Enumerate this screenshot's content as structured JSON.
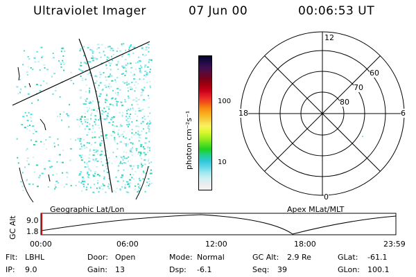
{
  "header": {
    "title": "Ultraviolet Imager",
    "date": "07 Jun 00",
    "time": "00:06:53 UT"
  },
  "colorbar": {
    "unit": "photon cm⁻²s⁻¹",
    "ticks": [
      "100",
      "10"
    ],
    "colors": [
      "#000030",
      "#1a0a40",
      "#3a0f50",
      "#5a0a3a",
      "#7a0018",
      "#a00010",
      "#c80018",
      "#e8202a",
      "#f05018",
      "#f88a10",
      "#f8b020",
      "#f8d040",
      "#f8f060",
      "#e0f830",
      "#a8f020",
      "#60e020",
      "#20d020",
      "#20d090",
      "#30c8d8",
      "#60d8e8",
      "#a0e8f0",
      "#d0f0f4",
      "#ececec",
      "#f6f6f6"
    ]
  },
  "projections": {
    "geographic": "Geographic Lat/Lon",
    "apex": "Apex MLat/MLT"
  },
  "polar": {
    "mlt_labels": {
      "top": "12",
      "right": "6",
      "bottom": "0",
      "left": "18"
    },
    "lat_labels": [
      "60",
      "70",
      "80"
    ]
  },
  "altitude_plot": {
    "ylabel": "GC Alt",
    "yticks": [
      "9.0",
      "1.8"
    ],
    "x_ticks": [
      "00:00",
      "06:00",
      "12:00",
      "18:00",
      "23:59"
    ]
  },
  "info": {
    "row1": [
      {
        "key": "Flt:",
        "val": "LBHL"
      },
      {
        "key": "Door:",
        "val": "Open"
      },
      {
        "key": "Mode:",
        "val": "Normal"
      },
      {
        "key": "GC Alt:",
        "val": "2.9 Re"
      },
      {
        "key": "GLat:",
        "val": "-61.1"
      }
    ],
    "row2": [
      {
        "key": "IP:",
        "val": "9.0"
      },
      {
        "key": "Gain:",
        "val": "13"
      },
      {
        "key": "Dsp:",
        "val": "-6.1"
      },
      {
        "key": "Seq:",
        "val": "39"
      },
      {
        "key": "GLon:",
        "val": "100.1"
      }
    ]
  }
}
